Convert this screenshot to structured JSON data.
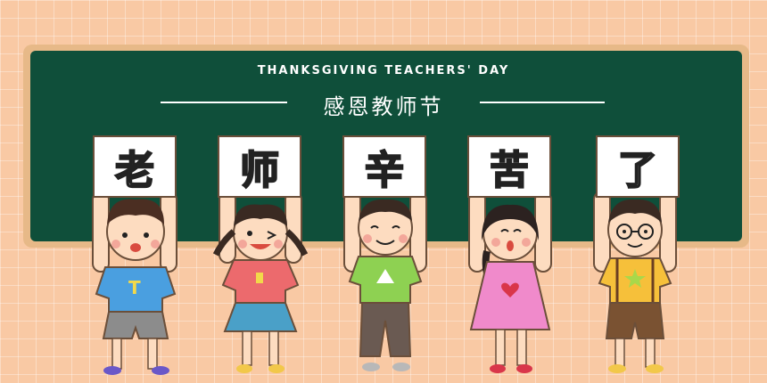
{
  "header": {
    "subtitle": "THANKSGIVING TEACHERS' DAY",
    "title": "感恩教师节"
  },
  "signs": [
    {
      "char": "老"
    },
    {
      "char": "师"
    },
    {
      "char": "辛"
    },
    {
      "char": "苦"
    },
    {
      "char": "了"
    }
  ],
  "colors": {
    "background": "#f9c9a4",
    "board": "#0f4f3a",
    "frame": "#e7b988"
  }
}
